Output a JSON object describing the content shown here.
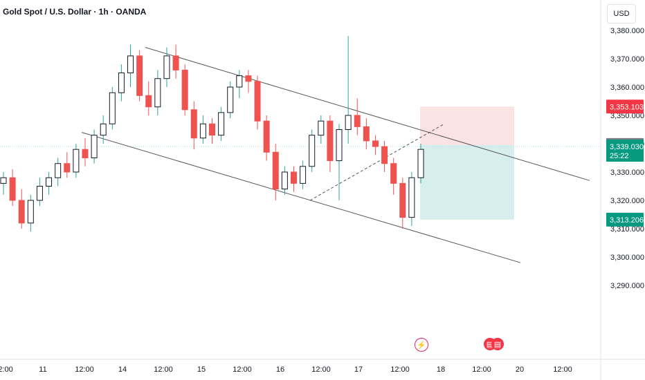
{
  "header": {
    "title": "Gold Spot / U.S. Dollar · 1h · OANDA",
    "currency": "USD"
  },
  "events": {
    "flash_icon": "lightning-icon",
    "flag_icon": "us-flag-icon"
  },
  "colors": {
    "up": "#26a69a",
    "down": "#ef5350",
    "wick": "#787b86",
    "line": "#131722",
    "short_zone": "#fbe2e3",
    "long_zone": "#d6efec",
    "badge_red": "#f23645",
    "badge_gray": "#787b86",
    "badge_teal": "#089981",
    "badge_green": "#089981"
  },
  "chart_data": {
    "type": "candlestick",
    "symbol": "Gold Spot / U.S. Dollar",
    "interval": "1h",
    "ylim": [
      3285,
      3385
    ],
    "y_ticks": [
      "3,290.000",
      "3,300.000",
      "3,310.000",
      "3,320.000",
      "3,330.000",
      "3,340.000",
      "3,350.000",
      "3,360.000",
      "3,370.000",
      "3,380.000"
    ],
    "y_tick_values": [
      3290,
      3300,
      3310,
      3320,
      3330,
      3340,
      3350,
      3360,
      3370,
      3380
    ],
    "x_ticks": [
      "2:00",
      "11",
      "12:00",
      "14",
      "12:00",
      "15",
      "12:00",
      "16",
      "12:00",
      "17",
      "12:00",
      "18",
      "12:00",
      "20",
      "12:00"
    ],
    "price_labels": [
      {
        "label": "3,353.103",
        "value": 3353.103,
        "kind": "stop"
      },
      {
        "label": "3,339.530",
        "value": 3339.53,
        "kind": "entry"
      },
      {
        "label": "3,339.030",
        "value": 3339.03,
        "kind": "last",
        "countdown": "25:22"
      },
      {
        "label": "3,313.206",
        "value": 3313.206,
        "kind": "target"
      }
    ],
    "position": {
      "entry": 3339.53,
      "stop": 3353.103,
      "target": 3313.206
    },
    "channel": {
      "upper_start": 3374,
      "upper_end": 3327,
      "lower_start": 3344,
      "lower_end": 3298
    },
    "candles": [
      [
        3326,
        3330,
        3322,
        3328
      ],
      [
        3328,
        3331,
        3318,
        3320
      ],
      [
        3320,
        3324,
        3310,
        3312
      ],
      [
        3312,
        3322,
        3309,
        3320
      ],
      [
        3320,
        3328,
        3318,
        3325
      ],
      [
        3325,
        3330,
        3322,
        3328
      ],
      [
        3328,
        3335,
        3325,
        3333
      ],
      [
        3333,
        3337,
        3328,
        3330
      ],
      [
        3330,
        3340,
        3328,
        3338
      ],
      [
        3338,
        3342,
        3332,
        3335
      ],
      [
        3335,
        3345,
        3333,
        3343
      ],
      [
        3343,
        3350,
        3340,
        3347
      ],
      [
        3347,
        3360,
        3345,
        3358
      ],
      [
        3358,
        3368,
        3355,
        3365
      ],
      [
        3365,
        3375,
        3360,
        3371
      ],
      [
        3371,
        3373,
        3355,
        3357
      ],
      [
        3357,
        3362,
        3350,
        3353
      ],
      [
        3353,
        3366,
        3350,
        3363
      ],
      [
        3363,
        3374,
        3360,
        3371
      ],
      [
        3371,
        3375,
        3363,
        3366
      ],
      [
        3366,
        3368,
        3350,
        3352
      ],
      [
        3352,
        3355,
        3338,
        3342
      ],
      [
        3342,
        3350,
        3340,
        3347
      ],
      [
        3347,
        3349,
        3340,
        3343
      ],
      [
        3343,
        3353,
        3341,
        3351
      ],
      [
        3351,
        3362,
        3349,
        3360
      ],
      [
        3360,
        3366,
        3356,
        3364
      ],
      [
        3364,
        3366,
        3358,
        3362
      ],
      [
        3362,
        3364,
        3345,
        3348
      ],
      [
        3348,
        3350,
        3334,
        3337
      ],
      [
        3337,
        3340,
        3320,
        3324
      ],
      [
        3324,
        3332,
        3322,
        3330
      ],
      [
        3330,
        3332,
        3323,
        3326
      ],
      [
        3326,
        3334,
        3324,
        3332
      ],
      [
        3332,
        3345,
        3330,
        3343
      ],
      [
        3343,
        3350,
        3340,
        3348
      ],
      [
        3348,
        3350,
        3330,
        3334
      ],
      [
        3334,
        3347,
        3320,
        3345
      ],
      [
        3345,
        3378,
        3340,
        3350
      ],
      [
        3350,
        3356,
        3343,
        3346
      ],
      [
        3346,
        3349,
        3338,
        3341
      ],
      [
        3341,
        3343,
        3336,
        3339
      ],
      [
        3339,
        3341,
        3330,
        3333
      ],
      [
        3333,
        3335,
        3322,
        3326
      ],
      [
        3326,
        3328,
        3310,
        3314
      ],
      [
        3314,
        3330,
        3311,
        3328
      ],
      [
        3328,
        3340,
        3326,
        3338
      ]
    ]
  }
}
